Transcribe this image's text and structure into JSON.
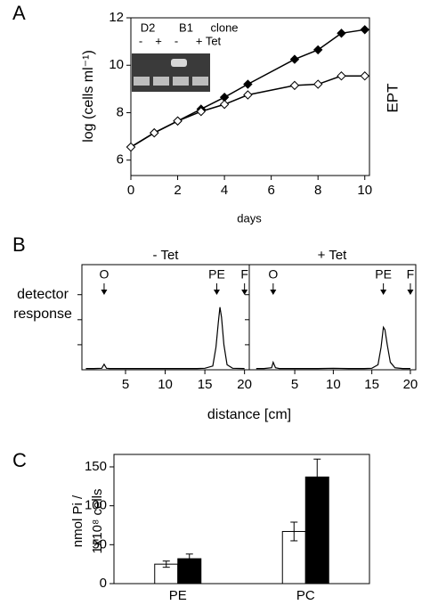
{
  "chart_data": [
    {
      "type": "line",
      "panel_label": "A",
      "x_label": "days",
      "y_label": "log (cells ml⁻¹)",
      "side_label": "EPT",
      "x": [
        0,
        1,
        2,
        3,
        4,
        5,
        7,
        8,
        9,
        10
      ],
      "series": [
        {
          "color": "#000000",
          "marker_face": "#000000",
          "values": [
            6.55,
            7.15,
            7.65,
            8.15,
            8.65,
            9.2,
            10.25,
            10.65,
            11.35,
            11.5
          ]
        },
        {
          "color": "#000000",
          "marker_face": "#ffffff",
          "values": [
            6.55,
            7.15,
            7.65,
            8.05,
            8.35,
            8.75,
            9.15,
            9.2,
            9.55,
            9.55
          ]
        }
      ],
      "markers": true,
      "xlim": [
        0,
        10.2
      ],
      "ylim": [
        5.35,
        12
      ],
      "xticks": [
        0,
        2,
        4,
        6,
        8,
        10
      ],
      "yticks": [
        6,
        8,
        10,
        12
      ],
      "ytick_labels": true,
      "inset": {
        "row1": [
          "D2",
          "B1",
          "clone"
        ],
        "row2": [
          "-",
          "+",
          "-",
          "+ Tet"
        ]
      }
    },
    {
      "type": "line",
      "panel_label": "B",
      "title": "- Tet",
      "y_label": [
        "detector",
        "response"
      ],
      "x_label": "distance [cm]",
      "x": [
        0,
        1,
        2,
        2.3,
        2.6,
        3,
        5,
        8,
        10,
        12,
        14,
        15,
        16,
        16.4,
        16.7,
        16.9,
        17.1,
        17.4,
        17.8,
        18.5,
        20
      ],
      "series": [
        {
          "color": "#000000",
          "values": [
            0.05,
            0.05,
            0.06,
            0.22,
            0.06,
            0.05,
            0.05,
            0.05,
            0.05,
            0.05,
            0.05,
            0.06,
            0.15,
            0.9,
            1.9,
            2.5,
            2.1,
            1.0,
            0.2,
            0.06,
            0.05
          ]
        }
      ],
      "markers": false,
      "xlim": [
        -0.5,
        20.6
      ],
      "ylim": [
        0,
        4.2
      ],
      "xticks": [
        5,
        10,
        15,
        20
      ],
      "yticks": [
        1,
        2,
        3
      ],
      "ytick_labels": false,
      "annotations": [
        {
          "label": "O",
          "x": 2.3
        },
        {
          "label": "PE",
          "x": 16.5
        },
        {
          "label": "F",
          "x": 20
        }
      ]
    },
    {
      "type": "line",
      "title": "+ Tet",
      "x": [
        0,
        1,
        2,
        2.2,
        2.5,
        3,
        5,
        8,
        10,
        12,
        14,
        15,
        15.8,
        16.2,
        16.5,
        16.7,
        17,
        17.4,
        18,
        19,
        20
      ],
      "series": [
        {
          "color": "#000000",
          "values": [
            0.05,
            0.05,
            0.08,
            0.3,
            0.08,
            0.05,
            0.05,
            0.05,
            0.06,
            0.05,
            0.05,
            0.06,
            0.2,
            0.9,
            1.7,
            1.6,
            1.0,
            0.3,
            0.08,
            0.05,
            0.05
          ]
        }
      ],
      "markers": false,
      "xlim": [
        -0.9,
        20.7
      ],
      "ylim": [
        0,
        4.2
      ],
      "xticks": [
        5,
        10,
        15,
        20
      ],
      "yticks": [
        1,
        2,
        3
      ],
      "ytick_labels": false,
      "annotations": [
        {
          "label": "O",
          "x": 2.2
        },
        {
          "label": "PE",
          "x": 16.5
        },
        {
          "label": "F",
          "x": 20
        }
      ]
    },
    {
      "type": "bar",
      "panel_label": "C",
      "y_label": [
        "nmol Pi /",
        "1x10⁸ cells"
      ],
      "categories": [
        "PE",
        "PC"
      ],
      "series": [
        {
          "color": "#ffffff",
          "values": [
            25,
            67
          ],
          "errors": [
            4,
            12
          ]
        },
        {
          "color": "#000000",
          "values": [
            32,
            137
          ],
          "errors": [
            6,
            23
          ]
        }
      ],
      "ylim": [
        0,
        166
      ],
      "yticks": [
        0,
        50,
        100,
        150
      ],
      "ytick_labels": true
    }
  ]
}
